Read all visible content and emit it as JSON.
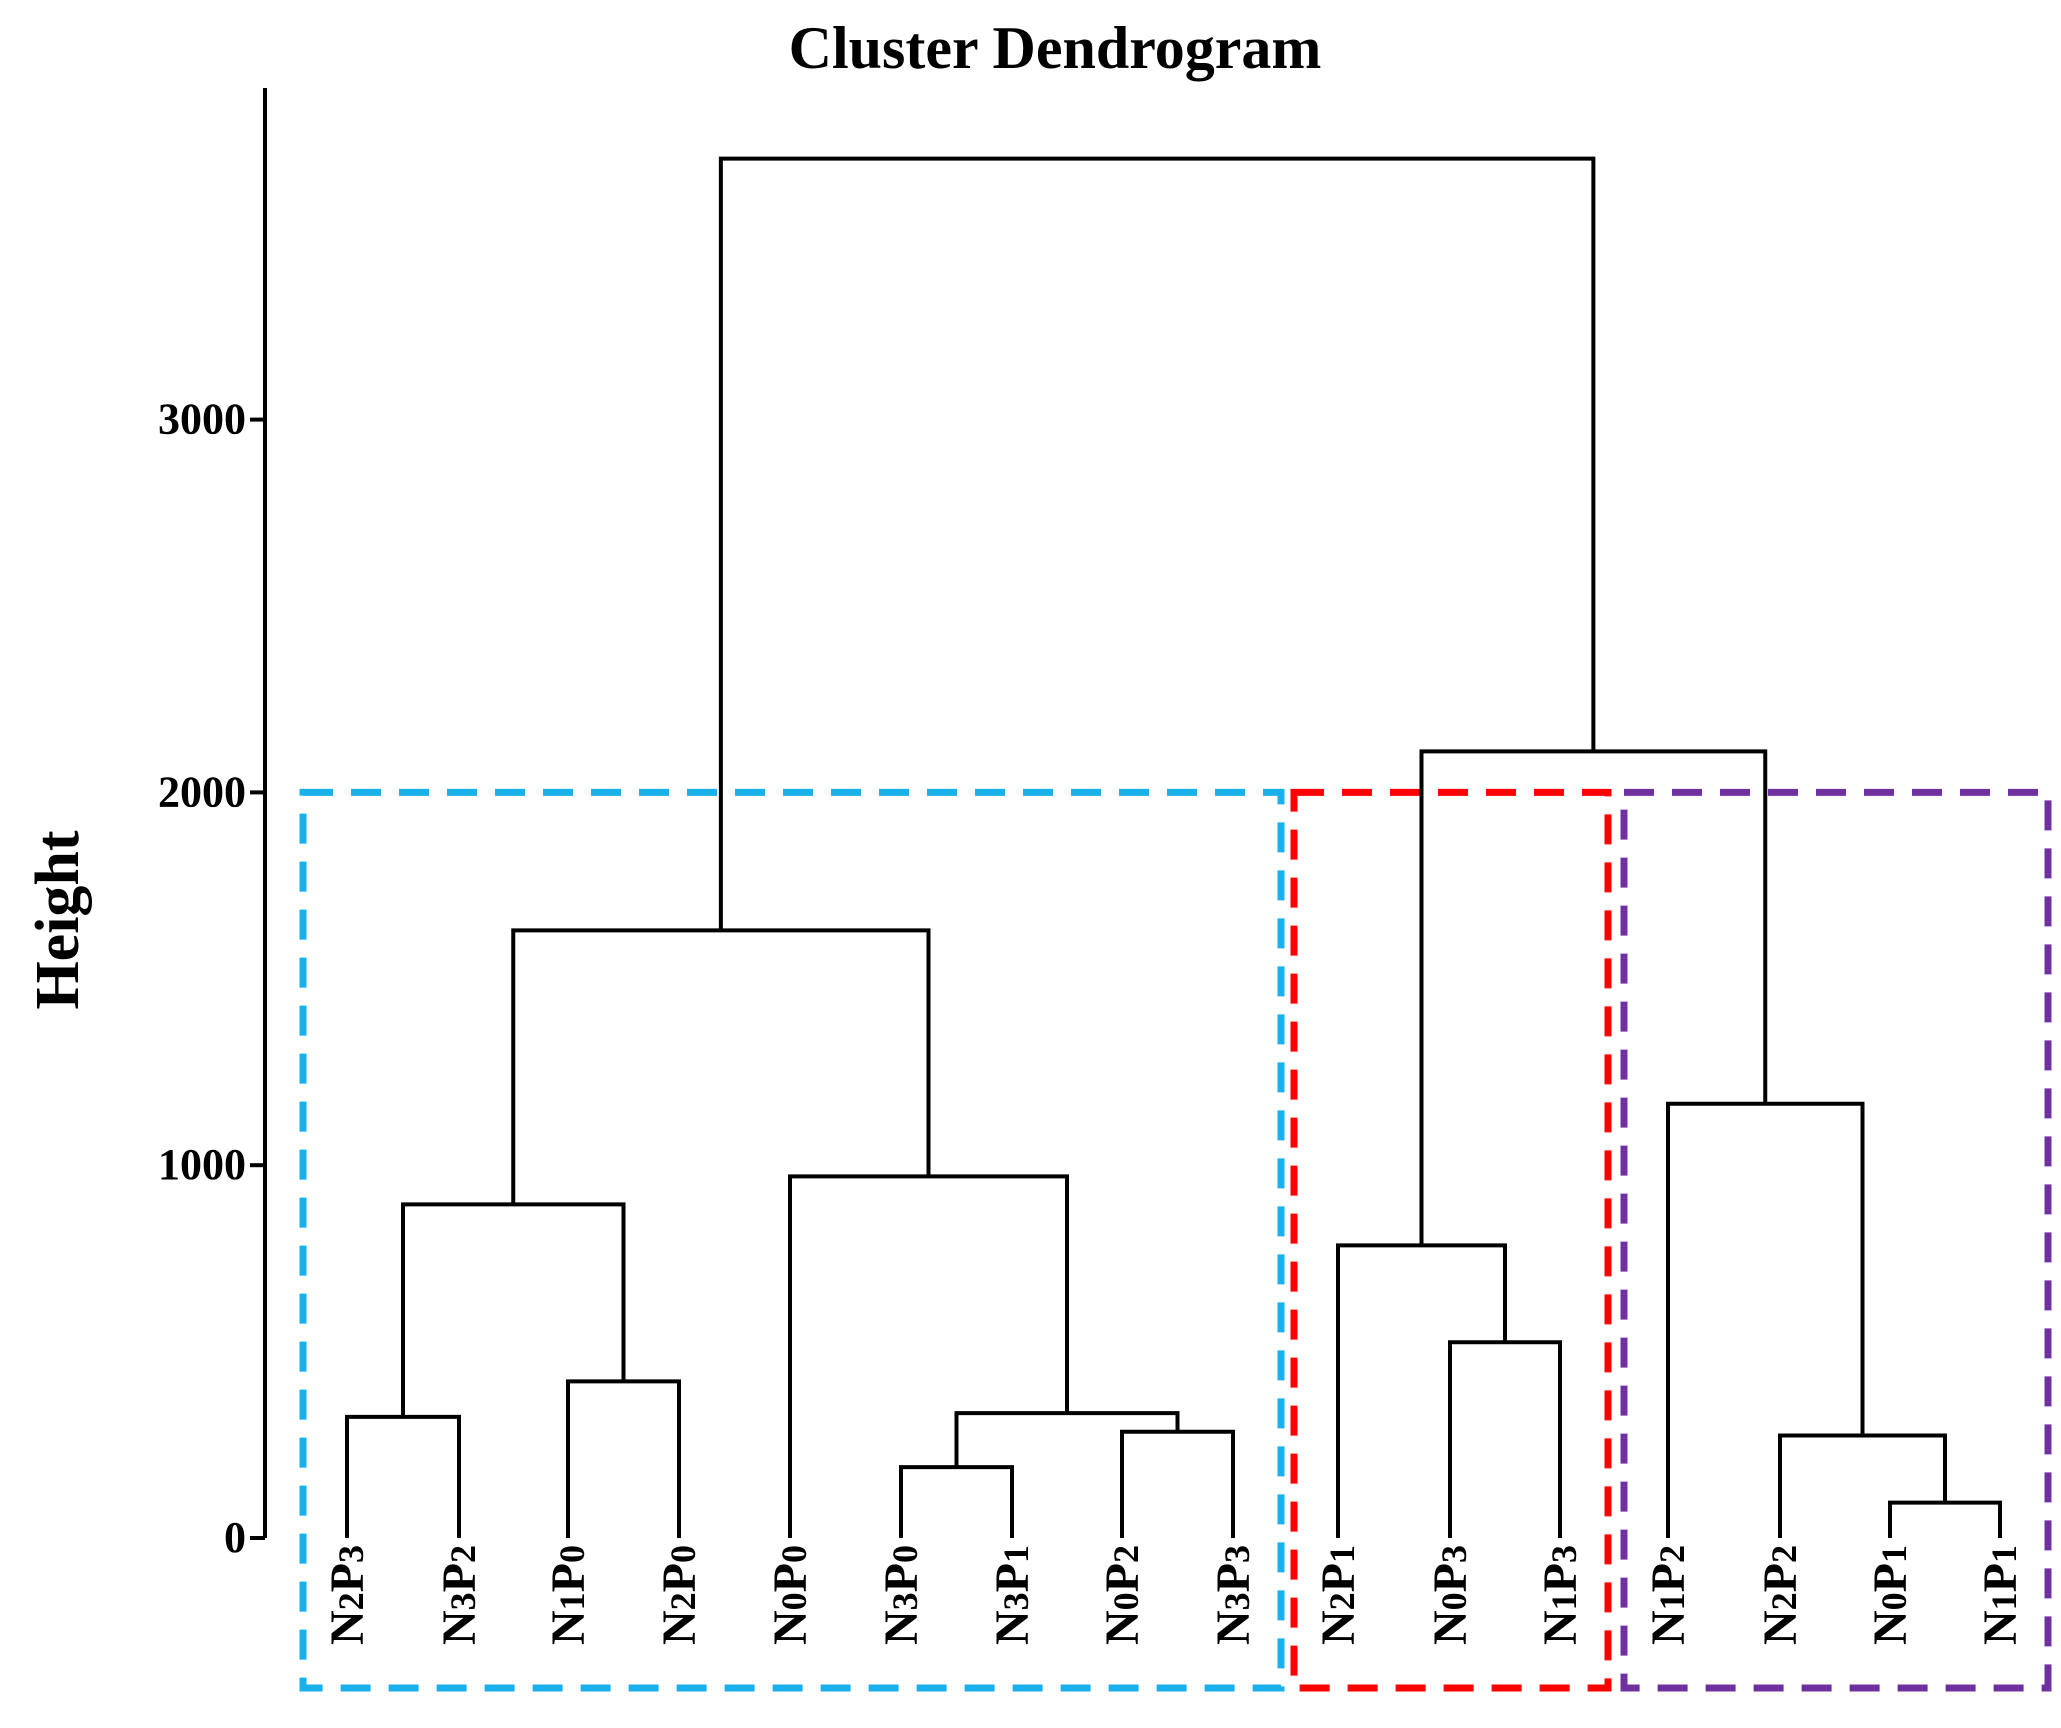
{
  "chart_data": {
    "type": "dendrogram",
    "title": "Cluster Dendrogram",
    "ylabel": "Height",
    "yticks": [
      0,
      1000,
      2000,
      3000
    ],
    "leaves": [
      "N2P3",
      "N3P2",
      "N1P0",
      "N2P0",
      "N0P0",
      "N3P0",
      "N3P1",
      "N0P2",
      "N3P3",
      "N2P1",
      "N0P3",
      "N1P3",
      "N1P2",
      "N2P2",
      "N0P1",
      "N1P1"
    ],
    "merges": [
      {
        "id": "m1",
        "left": "N2P3",
        "right": "N3P2",
        "height": 325
      },
      {
        "id": "m2",
        "left": "N1P0",
        "right": "N2P0",
        "height": 420
      },
      {
        "id": "m3",
        "left": "m1",
        "right": "m2",
        "height": 895
      },
      {
        "id": "m4",
        "left": "N3P0",
        "right": "N3P1",
        "height": 190
      },
      {
        "id": "m5",
        "left": "N0P2",
        "right": "N3P3",
        "height": 285
      },
      {
        "id": "m6",
        "left": "m4",
        "right": "m5",
        "height": 335
      },
      {
        "id": "m7",
        "left": "N0P0",
        "right": "m6",
        "height": 970
      },
      {
        "id": "m8",
        "left": "m3",
        "right": "m7",
        "height": 1630
      },
      {
        "id": "m9",
        "left": "N0P3",
        "right": "N1P3",
        "height": 525
      },
      {
        "id": "m10",
        "left": "N2P1",
        "right": "m9",
        "height": 785
      },
      {
        "id": "m11",
        "left": "N0P1",
        "right": "N1P1",
        "height": 95
      },
      {
        "id": "m12",
        "left": "N2P2",
        "right": "m11",
        "height": 275
      },
      {
        "id": "m13",
        "left": "N1P2",
        "right": "m12",
        "height": 1165
      },
      {
        "id": "m14",
        "left": "m10",
        "right": "m13",
        "height": 2110
      },
      {
        "id": "m15",
        "left": "m8",
        "right": "m14",
        "height": 3700
      }
    ],
    "clusters": [
      {
        "leaves": [
          "N2P3",
          "N3P2",
          "N1P0",
          "N2P0",
          "N0P0",
          "N3P0",
          "N3P1",
          "N0P2",
          "N3P3"
        ],
        "color": "#1ab0ea"
      },
      {
        "leaves": [
          "N2P1",
          "N0P3",
          "N1P3"
        ],
        "color": "#ff0000"
      },
      {
        "leaves": [
          "N1P2",
          "N2P2",
          "N0P1",
          "N1P1"
        ],
        "color": "#7030a0"
      }
    ],
    "cluster_box_height": 2000
  }
}
